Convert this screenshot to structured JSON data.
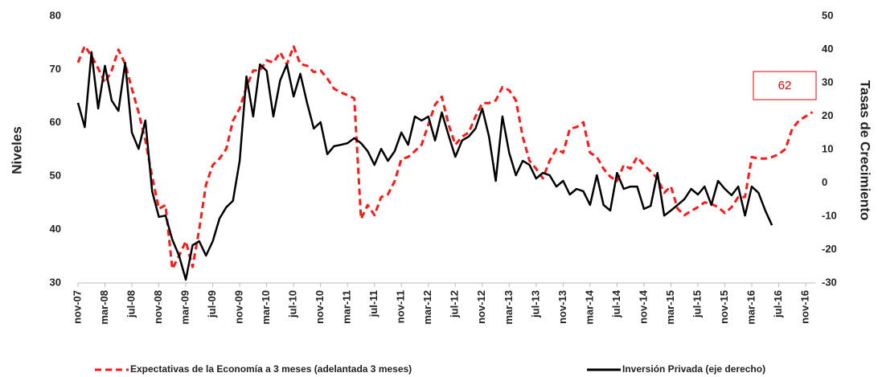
{
  "chart_data": {
    "type": "line",
    "y_label": "Niveles",
    "y2_label": "Tasas de Crecimiento",
    "annotation": "62",
    "categories": [
      "nov-07",
      null,
      null,
      null,
      "mar-08",
      null,
      null,
      null,
      "jul-08",
      null,
      null,
      null,
      "nov-08",
      null,
      null,
      null,
      "mar-09",
      null,
      null,
      null,
      "jul-09",
      null,
      null,
      null,
      "nov-09",
      null,
      null,
      null,
      "mar-10",
      null,
      null,
      null,
      "jul-10",
      null,
      null,
      null,
      "nov-10",
      null,
      null,
      null,
      "mar-11",
      null,
      null,
      null,
      "jul-11",
      null,
      null,
      null,
      "nov-11",
      null,
      null,
      null,
      "mar-12",
      null,
      null,
      null,
      "jul-12",
      null,
      null,
      null,
      "nov-12",
      null,
      null,
      null,
      "mar-13",
      null,
      null,
      null,
      "jul-13",
      null,
      null,
      null,
      "nov-13",
      null,
      null,
      null,
      "mar-14",
      null,
      null,
      null,
      "jul-14",
      null,
      null,
      null,
      "nov-14",
      null,
      null,
      null,
      "mar-15",
      null,
      null,
      null,
      "jul-15",
      null,
      null,
      null,
      "nov-15",
      null,
      null,
      null,
      "mar-16",
      null,
      null,
      null,
      "jul-16",
      null,
      null,
      null,
      "nov-16",
      null
    ],
    "ylim": [
      30,
      80
    ],
    "yticks": [
      30,
      40,
      50,
      60,
      70,
      80
    ],
    "y2lim": [
      -30,
      50
    ],
    "y2ticks": [
      -30,
      -20,
      -10,
      0,
      10,
      20,
      30,
      40,
      50
    ],
    "series": [
      {
        "name": "Expectativas de la Economía a 3 meses (adelantada 3 meses)",
        "color": "#ff1a1a",
        "dashed": true,
        "values": [
          71.3,
          74.4,
          72.5,
          70.2,
          67.5,
          69.8,
          73.7,
          71,
          66.4,
          61.9,
          56.7,
          49.9,
          43.9,
          44.6,
          32.6,
          35.1,
          37.8,
          33,
          40.1,
          48.4,
          52.1,
          53.3,
          55.1,
          60.4,
          62.7,
          66.7,
          69.8,
          69.8,
          71.7,
          71.3,
          73.2,
          71,
          74.3,
          71,
          70.7,
          69.5,
          69.8,
          68.3,
          66.4,
          65.7,
          65.2,
          64.6,
          42,
          44.6,
          42.7,
          46.1,
          46.6,
          49.1,
          53.2,
          53.6,
          54.7,
          55.9,
          59.7,
          63.4,
          64.9,
          59.7,
          55.9,
          57.4,
          58.2,
          61.2,
          63.7,
          63.7,
          64.2,
          66.7,
          66.1,
          64.2,
          57.4,
          52.9,
          51.4,
          49.6,
          52.9,
          55.1,
          54.4,
          58.9,
          59.2,
          60.1,
          54.4,
          53.6,
          51.4,
          49.9,
          49.1,
          52.1,
          51.4,
          53.6,
          52.1,
          50.9,
          49.6,
          46.9,
          48.1,
          43.9,
          42.7,
          43.5,
          44.2,
          45.1,
          44.8,
          44.2,
          43.1,
          44.2,
          46.1,
          46.1,
          53.6,
          53.3,
          53.3,
          53.6,
          54.1,
          55.1,
          58.9,
          60.4,
          61.2,
          62
        ]
      },
      {
        "name": "Inversión Privada (eje derecho)",
        "color": "#000000",
        "axis": "y2",
        "values": [
          24,
          16.7,
          39.2,
          22.3,
          35.1,
          24.7,
          21.6,
          36,
          15.1,
          10.2,
          18.7,
          -2.5,
          -10.2,
          -9.8,
          -17,
          -21.8,
          -29,
          -18.7,
          -17.5,
          -21.8,
          -17.5,
          -10.7,
          -7.3,
          -5.4,
          6.6,
          31.9,
          19.9,
          35.5,
          33.6,
          19.9,
          30.7,
          35.5,
          25.9,
          32.7,
          24,
          16.3,
          18.2,
          8.6,
          11,
          11.4,
          11.9,
          13.4,
          11.9,
          9.5,
          5.4,
          10.2,
          6.6,
          9.5,
          15.1,
          11.4,
          19.9,
          18.7,
          19.9,
          12.7,
          21.1,
          14.3,
          7.8,
          12.7,
          13.9,
          16.3,
          22.3,
          13.9,
          0.6,
          19.9,
          9,
          2.3,
          6.6,
          5.4,
          1.3,
          3,
          2.3,
          -1.1,
          0.6,
          -3.5,
          -1.8,
          -2.5,
          -6.6,
          2.3,
          -6.6,
          -8.3,
          3,
          -1.8,
          -1.1,
          -1.1,
          -7.8,
          -6.9,
          3,
          -9.8,
          -8.3,
          -6.6,
          -4.9,
          -1.8,
          -3.5,
          -1.1,
          -6.6,
          0.6,
          -1.8,
          -3.7,
          -1.1,
          -9.8,
          -1.1,
          -3,
          -8.3,
          -12.7,
          null,
          null,
          null,
          null,
          null,
          null
        ]
      }
    ]
  }
}
